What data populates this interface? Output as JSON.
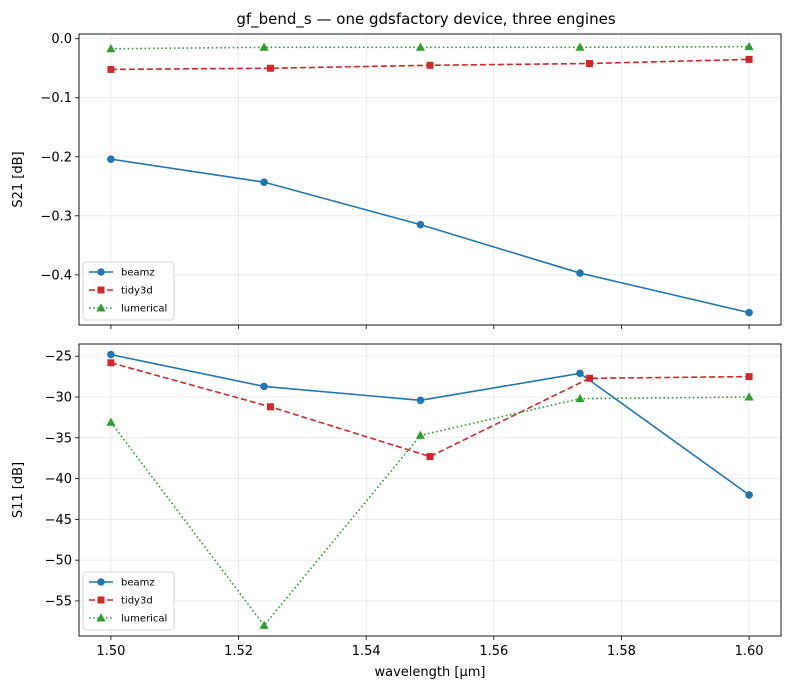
{
  "chart_data": [
    {
      "type": "line",
      "title": "gf_bend_s — one gdsfactory device, three engines",
      "xlabel": "",
      "ylabel": "S21 [dB]",
      "xlim": [
        1.495,
        1.605
      ],
      "ylim": [
        -0.485,
        0.008
      ],
      "xticks": [
        1.5,
        1.52,
        1.54,
        1.56,
        1.58,
        1.6
      ],
      "xtick_labels": [],
      "yticks": [
        0.0,
        -0.1,
        -0.2,
        -0.3,
        -0.4
      ],
      "ytick_labels": [
        "0.0",
        "−0.1",
        "−0.2",
        "−0.3",
        "−0.4"
      ],
      "grid": true,
      "legend": "lower-left",
      "series": [
        {
          "name": "beamz",
          "color": "#1f77b4",
          "marker": "circle",
          "dash": "solid",
          "x": [
            1.5,
            1.524,
            1.5485,
            1.5735,
            1.6
          ],
          "y": [
            -0.204,
            -0.243,
            -0.315,
            -0.397,
            -0.464
          ]
        },
        {
          "name": "tidy3d",
          "color": "#d62728",
          "marker": "square",
          "dash": "dashed",
          "x": [
            1.5,
            1.525,
            1.55,
            1.575,
            1.6
          ],
          "y": [
            -0.052,
            -0.05,
            -0.045,
            -0.042,
            -0.035
          ]
        },
        {
          "name": "lumerical",
          "color": "#2ca02c",
          "marker": "triangle",
          "dash": "dotted",
          "x": [
            1.5,
            1.524,
            1.5485,
            1.5735,
            1.6
          ],
          "y": [
            -0.017,
            -0.0145,
            -0.0145,
            -0.0145,
            -0.0135
          ]
        }
      ]
    },
    {
      "type": "line",
      "title": "",
      "xlabel": "wavelength [μm]",
      "ylabel": "S11 [dB]",
      "xlim": [
        1.495,
        1.605
      ],
      "ylim": [
        -59.3,
        -23.5
      ],
      "xticks": [
        1.5,
        1.52,
        1.54,
        1.56,
        1.58,
        1.6
      ],
      "xtick_labels": [
        "1.50",
        "1.52",
        "1.54",
        "1.56",
        "1.58",
        "1.60"
      ],
      "yticks": [
        -25,
        -30,
        -35,
        -40,
        -45,
        -50,
        -55
      ],
      "ytick_labels": [
        "−25",
        "−30",
        "−35",
        "−40",
        "−45",
        "−50",
        "−55"
      ],
      "grid": true,
      "legend": "lower-left",
      "series": [
        {
          "name": "beamz",
          "color": "#1f77b4",
          "marker": "circle",
          "dash": "solid",
          "x": [
            1.5,
            1.524,
            1.5485,
            1.5735,
            1.6
          ],
          "y": [
            -24.8,
            -28.7,
            -30.4,
            -27.1,
            -42.0
          ]
        },
        {
          "name": "tidy3d",
          "color": "#d62728",
          "marker": "square",
          "dash": "dashed",
          "x": [
            1.5,
            1.525,
            1.55,
            1.575,
            1.6
          ],
          "y": [
            -25.8,
            -31.2,
            -37.3,
            -27.7,
            -27.5
          ]
        },
        {
          "name": "lumerical",
          "color": "#2ca02c",
          "marker": "triangle",
          "dash": "dotted",
          "x": [
            1.5,
            1.524,
            1.5485,
            1.5735,
            1.6
          ],
          "y": [
            -33.1,
            -58.0,
            -34.7,
            -30.2,
            -30.0
          ]
        }
      ]
    }
  ]
}
